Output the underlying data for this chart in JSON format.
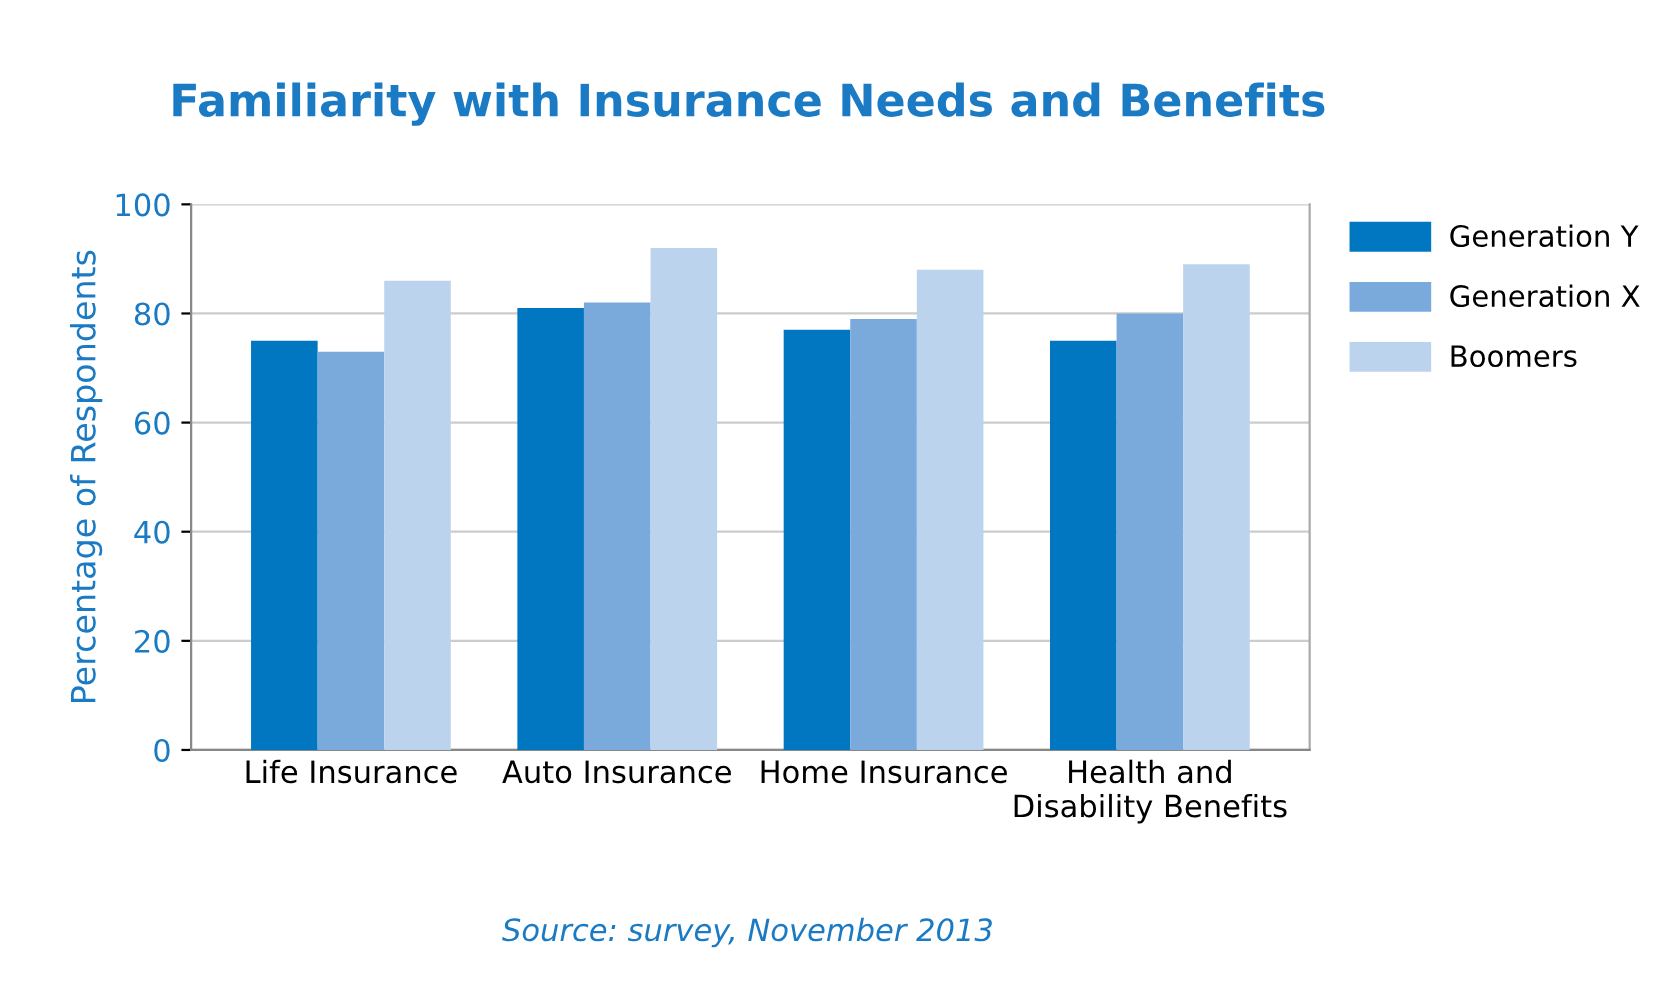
{
  "chart_data": {
    "type": "bar",
    "title": "Familiarity with Insurance Needs and Benefits",
    "ylabel": "Percentage of Respondents",
    "categories": [
      "Life Insurance",
      "Auto Insurance",
      "Home Insurance",
      "Health and\nDisability Benefits"
    ],
    "series": [
      {
        "name": "Generation Y",
        "color": "#0077c0",
        "values": [
          75,
          81,
          77,
          75
        ]
      },
      {
        "name": "Generation X",
        "color": "#7aaadc",
        "values": [
          73,
          82,
          79,
          80
        ]
      },
      {
        "name": "Boomers",
        "color": "#bcd3ee",
        "values": [
          86,
          92,
          88,
          89
        ]
      }
    ],
    "ylim": [
      0,
      100
    ],
    "yticks": [
      0,
      20,
      40,
      60,
      80,
      100
    ],
    "grid": "y",
    "legend": "right",
    "annotations": [
      "Source: survey, November 2013"
    ]
  }
}
